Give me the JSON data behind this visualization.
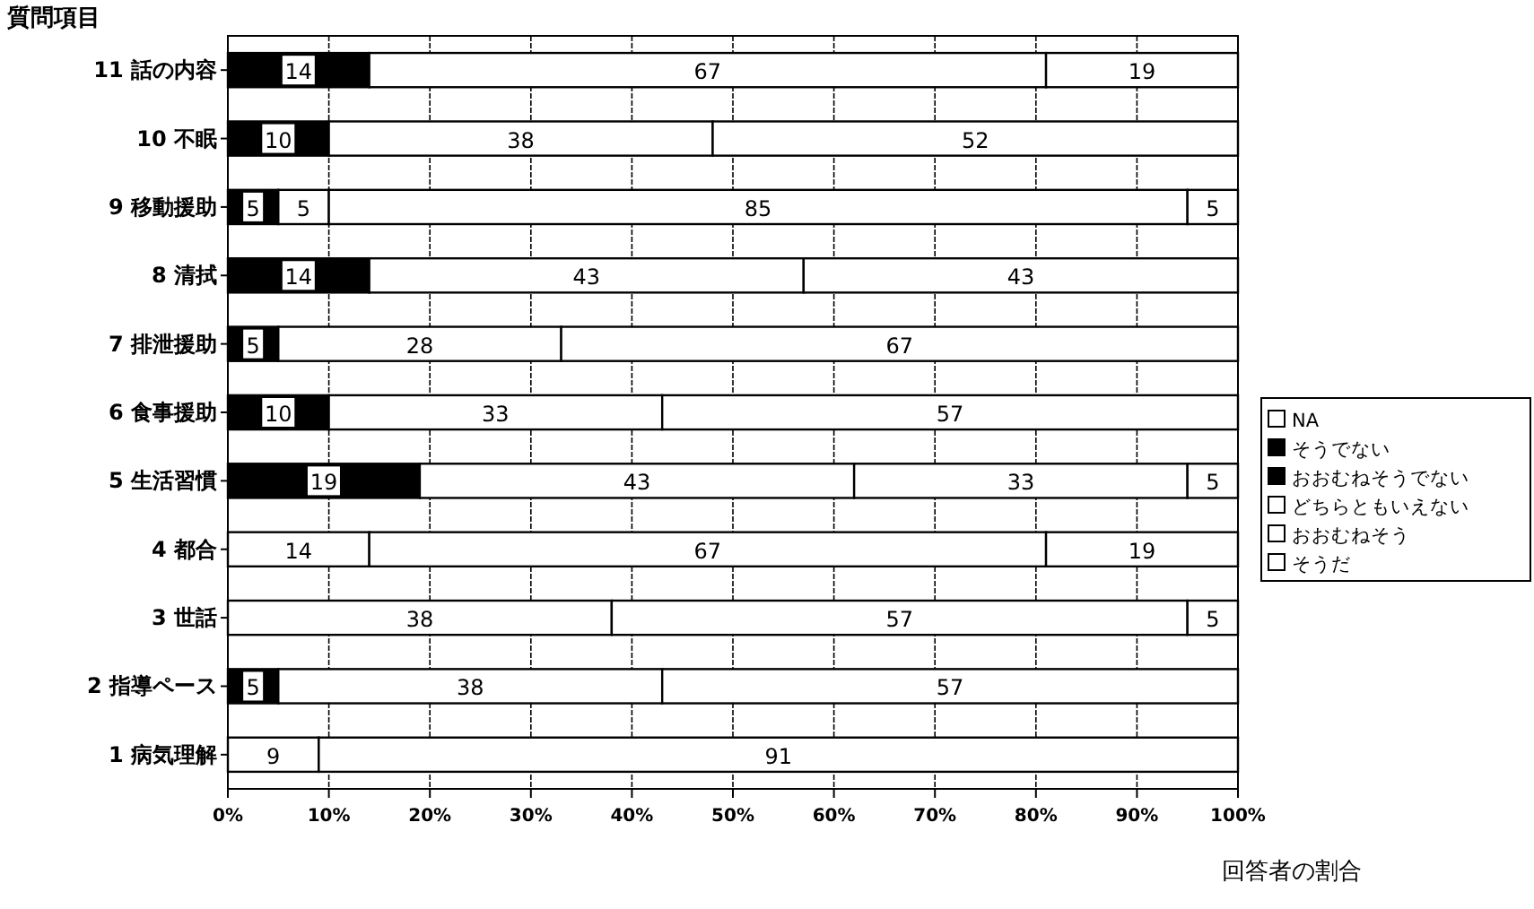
{
  "chart_data": {
    "type": "bar",
    "orientation": "horizontal",
    "stacked": true,
    "ylabel": "質問項目",
    "xlabel": "回答者の割合",
    "categories": [
      "11 話の内容",
      "10 不眠",
      "9 移動援助",
      "8 清拭",
      "7 排泄援助",
      "6 食事援助",
      "5 生活習慣",
      "4 都合",
      "3 世話",
      "2 指導ペース",
      "1 病気理解"
    ],
    "series": [
      {
        "name": "NA",
        "color": "#ffffff",
        "values": [
          null,
          null,
          null,
          null,
          null,
          null,
          null,
          null,
          null,
          null,
          null
        ]
      },
      {
        "name": "そうでない",
        "color": "#000000",
        "values": [
          null,
          null,
          null,
          null,
          null,
          null,
          null,
          null,
          null,
          null,
          null
        ]
      },
      {
        "name": "おおむねそうでない",
        "color": "#000000",
        "values": [
          14,
          10,
          5,
          14,
          5,
          10,
          19,
          null,
          null,
          5,
          null
        ]
      },
      {
        "name": "どちらともいえない",
        "color": "#ffffff",
        "values": [
          67,
          38,
          5,
          43,
          28,
          33,
          43,
          14,
          38,
          38,
          9
        ]
      },
      {
        "name": "おおむねそう",
        "color": "#ffffff",
        "values": [
          19,
          52,
          85,
          43,
          67,
          57,
          33,
          67,
          57,
          57,
          91
        ]
      },
      {
        "name": "そうだ",
        "color": "#ffffff",
        "values": [
          null,
          null,
          5,
          null,
          null,
          null,
          5,
          19,
          5,
          null,
          null
        ]
      }
    ],
    "xlim": [
      0,
      100
    ],
    "xticks": [
      {
        "value": 0,
        "label": "0%"
      },
      {
        "value": 10,
        "label": "10%"
      },
      {
        "value": 20,
        "label": "20%"
      },
      {
        "value": 30,
        "label": "30%"
      },
      {
        "value": 40,
        "label": "40%"
      },
      {
        "value": 50,
        "label": "50%"
      },
      {
        "value": 60,
        "label": "60%"
      },
      {
        "value": 70,
        "label": "70%"
      },
      {
        "value": 80,
        "label": "80%"
      },
      {
        "value": 90,
        "label": "90%"
      },
      {
        "value": 100,
        "label": "100%"
      }
    ],
    "grid": "x",
    "legend": "right",
    "data_labels": true
  }
}
